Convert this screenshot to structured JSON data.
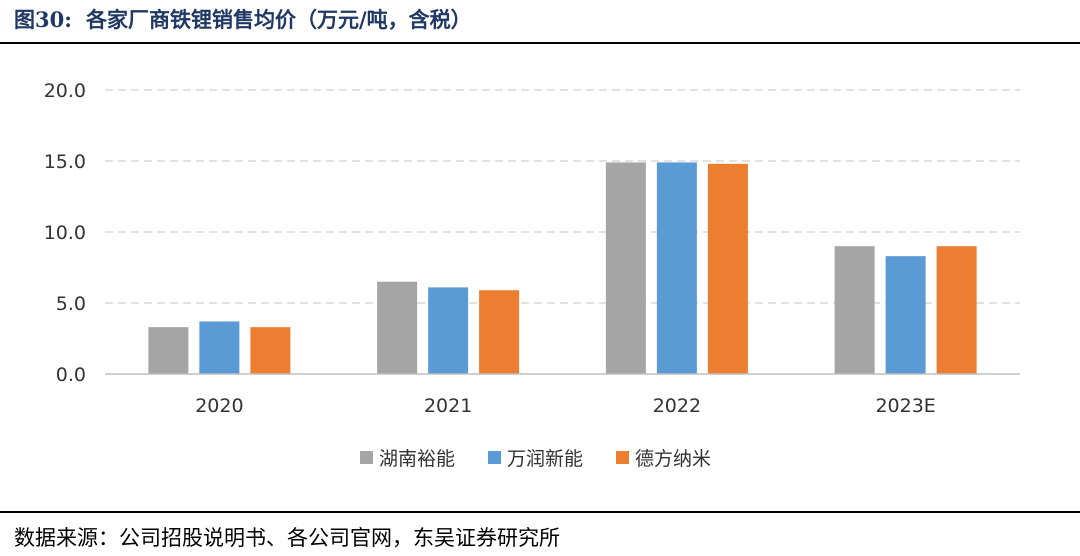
{
  "figure": {
    "label": "图30:",
    "title": "各家厂商铁锂销售均价（万元/吨，含税）"
  },
  "source": "数据来源：公司招股说明书、各公司官网，东吴证券研究所",
  "chart_data": {
    "type": "bar",
    "categories": [
      "2020",
      "2021",
      "2022",
      "2023E"
    ],
    "series": [
      {
        "name": "湖南裕能",
        "color": "#a5a5a5",
        "values": [
          3.3,
          6.5,
          14.9,
          9.0
        ]
      },
      {
        "name": "万润新能",
        "color": "#5b9bd5",
        "values": [
          3.7,
          6.1,
          14.9,
          8.3
        ]
      },
      {
        "name": "德方纳米",
        "color": "#ed7d31",
        "values": [
          3.3,
          5.9,
          14.8,
          9.0
        ]
      }
    ],
    "ylim": [
      0,
      20
    ],
    "yticks": [
      "0.0",
      "5.0",
      "10.0",
      "15.0",
      "20.0"
    ],
    "ytick_values": [
      0,
      5,
      10,
      15,
      20
    ],
    "grid": true,
    "legend": "bottom"
  }
}
